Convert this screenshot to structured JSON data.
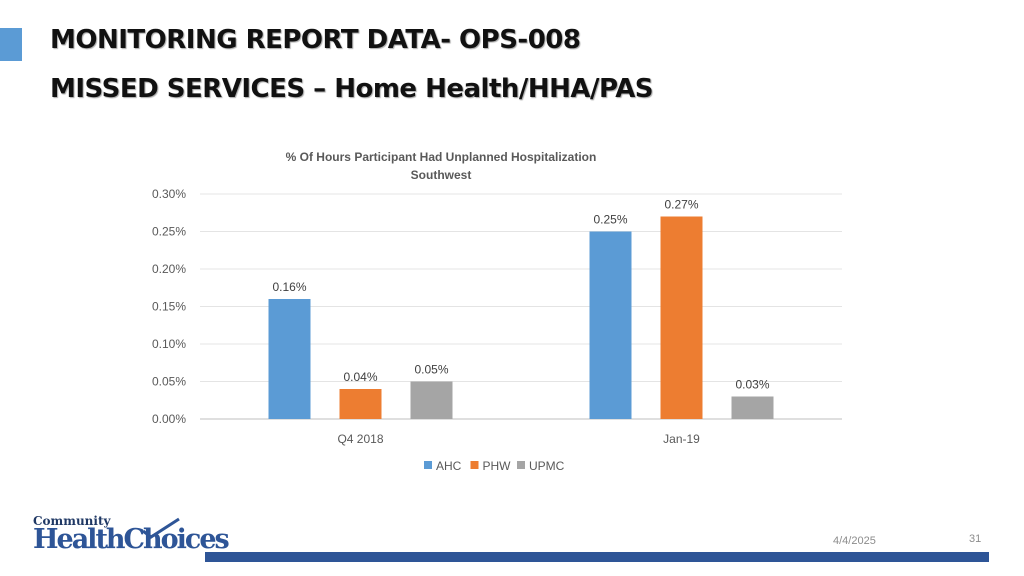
{
  "slide": {
    "title_line1": "MONITORING REPORT DATA- OPS-008",
    "title_line2": "MISSED SERVICES – Home Health/HHA/PAS",
    "logo_top": "Community",
    "logo_main": "HealthChoices",
    "date": "4/4/2025",
    "page_number": "31",
    "accent_color": "#5b9bd5",
    "footer_bar_color": "#2e5597"
  },
  "chart_data": {
    "type": "bar",
    "title": "% Of Hours Participant Had Unplanned Hospitalization",
    "subtitle": "Southwest",
    "categories": [
      "Q4 2018",
      "Jan-19"
    ],
    "series": [
      {
        "name": "AHC",
        "color": "#5b9bd5",
        "values": [
          0.16,
          0.25
        ],
        "labels": [
          "0.16%",
          "0.25%"
        ]
      },
      {
        "name": "PHW",
        "color": "#ed7d31",
        "values": [
          0.04,
          0.27
        ],
        "labels": [
          "0.04%",
          "0.27%"
        ]
      },
      {
        "name": "UPMC",
        "color": "#a5a5a5",
        "values": [
          0.05,
          0.03
        ],
        "labels": [
          "0.05%",
          "0.03%"
        ]
      }
    ],
    "ylim": [
      0,
      0.3
    ],
    "yticks": [
      "0.00%",
      "0.05%",
      "0.10%",
      "0.15%",
      "0.20%",
      "0.25%",
      "0.30%"
    ],
    "ytick_values": [
      0,
      0.05,
      0.1,
      0.15,
      0.2,
      0.25,
      0.3
    ],
    "grid": true,
    "legend_position": "bottom"
  }
}
